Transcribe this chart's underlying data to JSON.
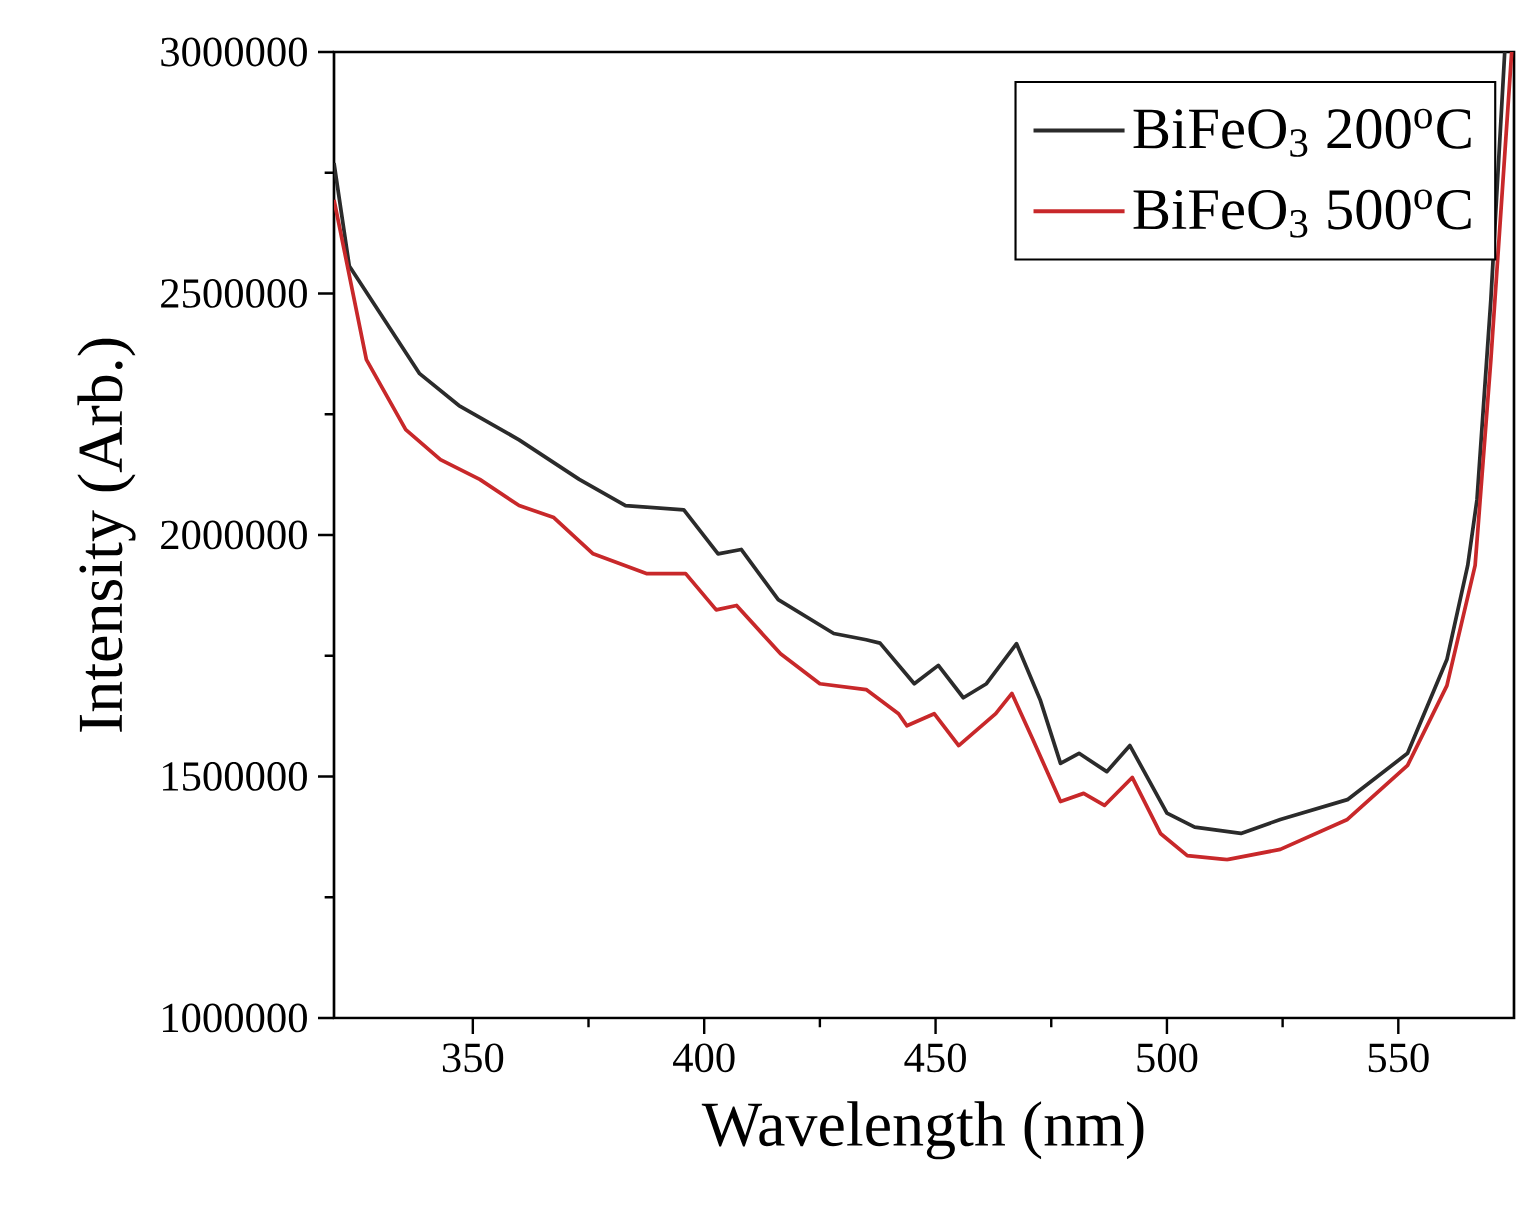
{
  "chart_data": {
    "type": "line",
    "xlabel": "Wavelength (nm)",
    "ylabel": "Intensity (Arb.)",
    "xlim": [
      320,
      575
    ],
    "xticks": [
      350,
      400,
      450,
      500,
      550
    ],
    "ylim": [
      1000000,
      3000000
    ],
    "yticks": [
      1000000,
      1500000,
      2000000,
      2500000,
      3000000
    ],
    "grid": false,
    "legend": "top right",
    "marker": "none",
    "line_style": "solid",
    "series": [
      {
        "name": "BiFeO$_{3}$ 200$^{o}$C",
        "color": "#2b2b2b",
        "x": [
          320,
          323.3,
          338.5,
          347,
          360,
          373,
          383,
          395.6,
          403,
          408,
          416,
          428,
          435,
          438,
          445.4,
          450.6,
          456,
          461,
          467.5,
          472.6,
          477,
          481,
          487,
          492,
          500,
          506,
          516,
          524.5,
          539,
          552,
          560.5,
          565,
          567,
          570,
          573
        ],
        "values": [
          2770000,
          2557000,
          2334000,
          2268000,
          2197000,
          2115000,
          2061000,
          2052000,
          1961000,
          1970000,
          1866000,
          1796000,
          1783000,
          1776000,
          1692000,
          1730000,
          1663000,
          1692000,
          1775000,
          1659000,
          1527000,
          1548000,
          1510000,
          1564000,
          1424000,
          1395000,
          1382000,
          1411000,
          1452000,
          1548000,
          1742000,
          1937000,
          2073000,
          2487000,
          3000000
        ]
      },
      {
        "name": "BiFeO$_{3}$ 500$^{o}$C",
        "color": "#c8282a",
        "x": [
          320,
          327,
          335.5,
          343,
          351.5,
          360,
          367.5,
          376,
          387.5,
          396,
          402.6,
          407,
          416.5,
          425,
          435,
          442,
          443.8,
          449.7,
          455,
          463,
          466.5,
          471,
          477,
          482,
          486.5,
          492.5,
          498.6,
          504.4,
          513,
          524.5,
          539,
          552,
          560.5,
          566.6,
          570,
          574.5
        ],
        "values": [
          2694000,
          2363000,
          2218000,
          2156000,
          2115000,
          2061000,
          2036000,
          1961000,
          1920000,
          1920000,
          1845000,
          1854000,
          1754000,
          1692000,
          1680000,
          1630000,
          1605000,
          1630000,
          1564000,
          1630000,
          1672000,
          1577000,
          1448000,
          1465000,
          1440000,
          1498000,
          1382000,
          1336000,
          1328000,
          1349000,
          1411000,
          1523000,
          1688000,
          1937000,
          2362000,
          3000000
        ]
      }
    ]
  }
}
